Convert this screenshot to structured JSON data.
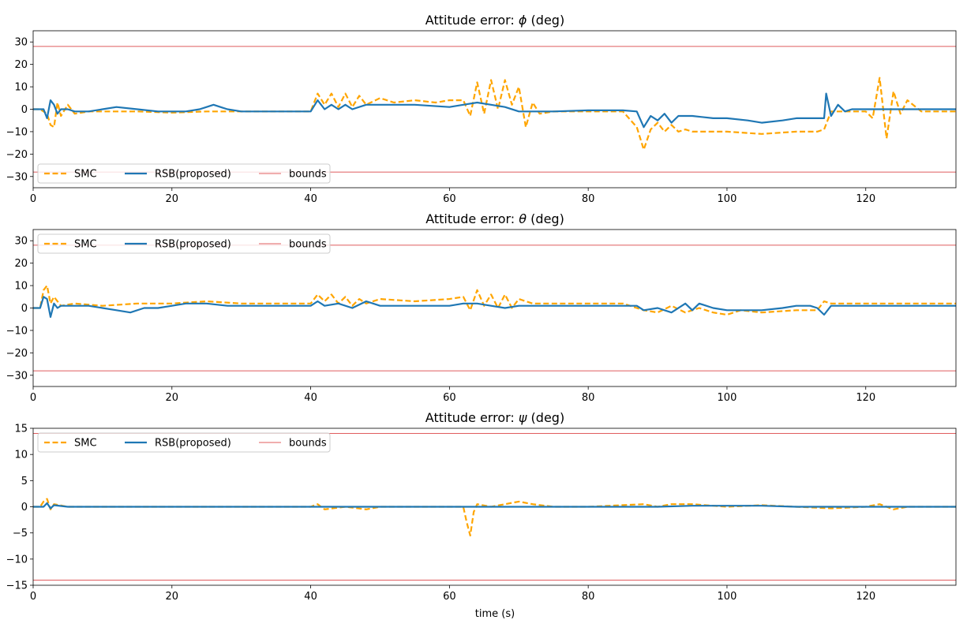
{
  "figure": {
    "xlabel": "time (s)"
  },
  "colors": {
    "smc": "#ffa500",
    "rsb": "#1f77b4",
    "bounds": "#d62728"
  },
  "chart_data": [
    {
      "type": "line",
      "title_prefix": "Attitude error: ",
      "symbol": "ϕ",
      "title_suffix": " (deg)",
      "xlim": [
        0,
        133
      ],
      "ylim": [
        -35,
        35
      ],
      "xticks": [
        0,
        20,
        40,
        60,
        80,
        100,
        120
      ],
      "yticks": [
        -30,
        -20,
        -10,
        0,
        10,
        20,
        30
      ],
      "grid": false,
      "legend_position": "lower-left",
      "legend": [
        "SMC",
        "RSB(proposed)",
        "bounds"
      ],
      "bounds": [
        -28,
        28
      ],
      "series": [
        {
          "name": "SMC",
          "style": "dashed",
          "x": [
            0,
            1,
            2,
            2.5,
            3,
            3.5,
            4,
            5,
            6,
            8,
            10,
            15,
            20,
            25,
            30,
            35,
            38,
            40,
            41,
            42,
            43,
            44,
            45,
            46,
            47,
            48,
            50,
            52,
            55,
            58,
            60,
            62,
            63,
            64,
            65,
            66,
            67,
            68,
            69,
            70,
            71,
            72,
            73,
            75,
            80,
            85,
            87,
            88,
            89,
            90,
            91,
            92,
            93,
            94,
            95,
            100,
            105,
            110,
            113,
            114,
            115,
            117,
            120,
            121,
            122,
            123,
            124,
            125,
            126,
            128,
            133
          ],
          "y": [
            0,
            0,
            -2,
            -7,
            -8,
            3,
            -3,
            2,
            -2,
            -1,
            -1,
            -1,
            -1.5,
            -1,
            -1,
            -1,
            -1,
            -1,
            7,
            2,
            7,
            1,
            7,
            1,
            6,
            2,
            5,
            3,
            4,
            3,
            4,
            4,
            -3,
            12,
            -2,
            13,
            0,
            13,
            2,
            10,
            -8,
            3,
            -2,
            -1,
            -1,
            -1,
            -8,
            -18,
            -9,
            -6,
            -10,
            -7,
            -10,
            -9,
            -10,
            -10,
            -11,
            -10,
            -10,
            -9,
            -1,
            -1,
            -1,
            -4,
            14,
            -13,
            8,
            -2,
            4,
            -1,
            -1
          ]
        },
        {
          "name": "RSB(proposed)",
          "style": "solid",
          "x": [
            0,
            1.5,
            2,
            2.5,
            3,
            3.5,
            4,
            5,
            6,
            8,
            10,
            12,
            15,
            18,
            20,
            22,
            24,
            25,
            26,
            27,
            28,
            30,
            35,
            40,
            41,
            42,
            43,
            44,
            45,
            46,
            48,
            50,
            55,
            60,
            62,
            64,
            66,
            68,
            70,
            72,
            75,
            80,
            85,
            87,
            88,
            89,
            90,
            91,
            92,
            93,
            95,
            98,
            100,
            103,
            105,
            108,
            110,
            113,
            114,
            114.3,
            115,
            116,
            117,
            118,
            120,
            125,
            133
          ],
          "y": [
            0,
            0,
            -4,
            4,
            2,
            -2,
            0,
            0,
            -1,
            -1,
            0,
            1,
            0,
            -1,
            -1,
            -1,
            0,
            1,
            2,
            1,
            0,
            -1,
            -1,
            -1,
            4,
            0,
            2,
            0,
            2,
            0,
            2,
            2,
            2,
            1,
            2,
            3,
            2,
            1,
            -1,
            -1,
            -1,
            -0.5,
            -0.5,
            -1,
            -8,
            -3,
            -5,
            -2,
            -6,
            -3,
            -3,
            -4,
            -4,
            -5,
            -6,
            -5,
            -4,
            -4,
            -4,
            7,
            -3,
            2,
            -1,
            0,
            0,
            0,
            0
          ]
        }
      ]
    },
    {
      "type": "line",
      "title_prefix": "Attitude error: ",
      "symbol": "θ",
      "title_suffix": " (deg)",
      "xlim": [
        0,
        133
      ],
      "ylim": [
        -35,
        35
      ],
      "xticks": [
        0,
        20,
        40,
        60,
        80,
        100,
        120
      ],
      "yticks": [
        -30,
        -20,
        -10,
        0,
        10,
        20,
        30
      ],
      "grid": false,
      "legend_position": "upper-left",
      "legend": [
        "SMC",
        "RSB(proposed)",
        "bounds"
      ],
      "bounds": [
        -28,
        28
      ],
      "series": [
        {
          "name": "SMC",
          "style": "dashed",
          "x": [
            0,
            1,
            1.5,
            2,
            2.5,
            3,
            4,
            6,
            10,
            15,
            20,
            25,
            30,
            35,
            40,
            41,
            42,
            43,
            44,
            45,
            46,
            47,
            48,
            50,
            55,
            60,
            62,
            63,
            64,
            65,
            66,
            67,
            68,
            69,
            70,
            72,
            75,
            80,
            85,
            88,
            90,
            92,
            94,
            96,
            98,
            100,
            102,
            105,
            110,
            113,
            114,
            115,
            120,
            133
          ],
          "y": [
            0,
            0,
            8,
            10,
            2,
            5,
            1,
            2,
            1,
            2,
            2,
            3,
            2,
            2,
            2,
            6,
            3,
            6,
            2,
            5,
            1,
            4,
            2,
            4,
            3,
            4,
            5,
            -1,
            8,
            1,
            6,
            0,
            6,
            0,
            4,
            2,
            2,
            2,
            2,
            -1,
            -2,
            1,
            -2,
            0,
            -2,
            -3,
            -1,
            -2,
            -1,
            -1,
            3,
            2,
            2,
            2
          ]
        },
        {
          "name": "RSB(proposed)",
          "style": "solid",
          "x": [
            0,
            1,
            1.5,
            2,
            2.5,
            3,
            3.5,
            4,
            6,
            8,
            10,
            12,
            14,
            16,
            18,
            20,
            22,
            25,
            28,
            30,
            35,
            40,
            41,
            42,
            44,
            46,
            48,
            50,
            55,
            60,
            62,
            64,
            66,
            68,
            70,
            75,
            80,
            85,
            87,
            88,
            90,
            92,
            94,
            95,
            96,
            98,
            100,
            103,
            105,
            108,
            110,
            112,
            113,
            114,
            115,
            120,
            133
          ],
          "y": [
            0,
            0,
            5,
            4,
            -4,
            2,
            0,
            1,
            1,
            1,
            0,
            -1,
            -2,
            0,
            0,
            1,
            2,
            2,
            1,
            1,
            1,
            1,
            3,
            1,
            2,
            0,
            3,
            1,
            1,
            1,
            2,
            2,
            1,
            0,
            1,
            1,
            1,
            1,
            1,
            -1,
            0,
            -2,
            2,
            -1,
            2,
            0,
            -1,
            -1,
            -1,
            0,
            1,
            1,
            0,
            -3,
            1,
            1,
            1
          ]
        }
      ]
    },
    {
      "type": "line",
      "title_prefix": "Attitude error: ",
      "symbol": "ψ",
      "title_suffix": " (deg)",
      "xlim": [
        0,
        133
      ],
      "ylim": [
        -15,
        15
      ],
      "xticks": [
        0,
        20,
        40,
        60,
        80,
        100,
        120
      ],
      "yticks": [
        -15,
        -10,
        -5,
        0,
        5,
        10,
        15
      ],
      "grid": false,
      "legend_position": "upper-left",
      "legend": [
        "SMC",
        "RSB(proposed)",
        "bounds"
      ],
      "bounds": [
        -14,
        14
      ],
      "series": [
        {
          "name": "SMC",
          "style": "dashed",
          "x": [
            0,
            1,
            1.5,
            2,
            2.5,
            3,
            5,
            10,
            20,
            30,
            40,
            41,
            42,
            45,
            48,
            50,
            55,
            60,
            62,
            62.5,
            63,
            63.5,
            64,
            66,
            68,
            70,
            72,
            75,
            80,
            88,
            90,
            92,
            95,
            100,
            105,
            110,
            115,
            120,
            122,
            124,
            126,
            133
          ],
          "y": [
            0,
            0,
            1,
            1.5,
            -0.5,
            0.5,
            0,
            0,
            0,
            0,
            0,
            0.5,
            -0.5,
            0,
            -0.5,
            0,
            0,
            0,
            0,
            -3,
            -5.5,
            -1,
            0.5,
            0,
            0.5,
            1,
            0.5,
            0,
            0,
            0.5,
            0,
            0.5,
            0.5,
            0,
            0.3,
            0,
            -0.3,
            0,
            0.5,
            -0.5,
            0,
            0
          ]
        },
        {
          "name": "RSB(proposed)",
          "style": "solid",
          "x": [
            0,
            1.5,
            2,
            2.5,
            3,
            5,
            10,
            20,
            30,
            40,
            50,
            60,
            70,
            80,
            90,
            95,
            100,
            105,
            110,
            115,
            120,
            133
          ],
          "y": [
            0,
            0,
            0.7,
            -0.3,
            0.3,
            0,
            0,
            0,
            0,
            0,
            0,
            0,
            0,
            0,
            0,
            0.2,
            0.2,
            0.2,
            0,
            0,
            0,
            0
          ]
        }
      ]
    }
  ]
}
